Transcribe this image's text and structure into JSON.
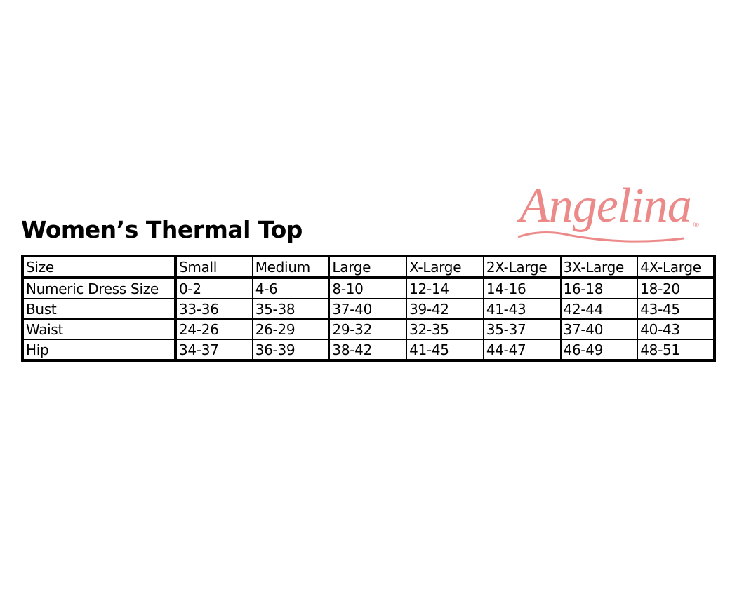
{
  "title": "Women’s Thermal Top",
  "brand": {
    "logo_text": "Angelina",
    "registered": "®",
    "color": "#ec8a8a"
  },
  "table": {
    "header": [
      "Size",
      "Small",
      "Medium",
      "Large",
      "X-Large",
      "2X-Large",
      "3X-Large",
      "4X-Large"
    ],
    "rows": [
      [
        "Numeric Dress Size",
        "0-2",
        "4-6",
        "8-10",
        "12-14",
        "14-16",
        "16-18",
        "18-20"
      ],
      [
        "Bust",
        "33-36",
        "35-38",
        "37-40",
        "39-42",
        "41-43",
        "42-44",
        "43-45"
      ],
      [
        "Waist",
        "24-26",
        "26-29",
        "29-32",
        "32-35",
        "35-37",
        "37-40",
        "40-43"
      ],
      [
        "Hip",
        "34-37",
        "36-39",
        "38-42",
        "41-45",
        "44-47",
        "46-49",
        "48-51"
      ]
    ]
  }
}
